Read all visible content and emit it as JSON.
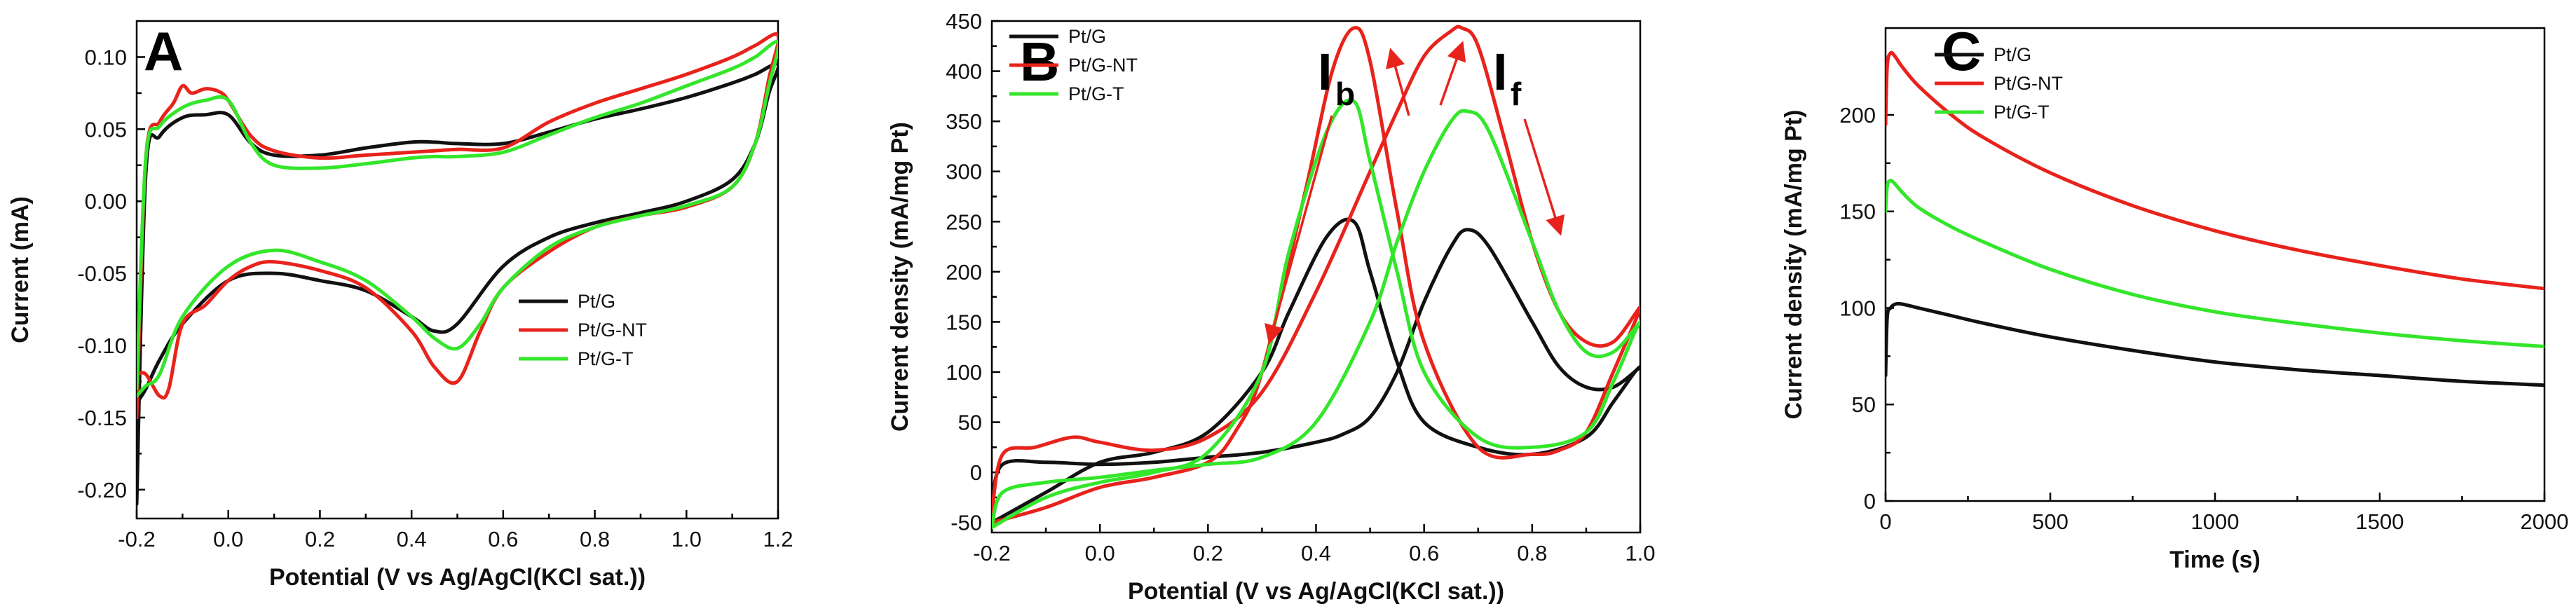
{
  "colors": {
    "Pt/G": "#111111",
    "Pt/G-NT": "#e8231c",
    "Pt/G-T": "#33e62a"
  },
  "chart_data": [
    {
      "type": "line",
      "panel": "A",
      "title": "",
      "xlabel": "Potential (V vs Ag/AgCl(KCl sat.))",
      "ylabel": "Current (mA)",
      "xlim": [
        -0.2,
        1.2
      ],
      "ylim": [
        -0.22,
        0.125
      ],
      "xticks": [
        "-0.2",
        "0.0",
        "0.2",
        "0.4",
        "0.6",
        "0.8",
        "1.0",
        "1.2"
      ],
      "yticks": [
        "-0.20",
        "-0.15",
        "-0.10",
        "-0.05",
        "0.00",
        "0.05",
        "0.10"
      ],
      "legend": [
        "Pt/G",
        "Pt/G-NT",
        "Pt/G-T"
      ],
      "legend_position": "lower-right",
      "series": [
        {
          "name": "Pt/G",
          "x": [
            -0.2,
            -0.18,
            -0.15,
            -0.1,
            -0.05,
            0.0,
            0.05,
            0.1,
            0.2,
            0.3,
            0.4,
            0.45,
            0.5,
            0.6,
            0.7,
            0.8,
            0.9,
            1.0,
            1.1,
            1.15,
            1.2,
            1.18,
            1.15,
            1.1,
            1.0,
            0.9,
            0.8,
            0.7,
            0.6,
            0.5,
            0.45,
            0.4,
            0.3,
            0.2,
            0.1,
            0.0,
            -0.1,
            -0.15,
            -0.18,
            -0.2
          ],
          "y": [
            -0.21,
            0.02,
            0.045,
            0.058,
            0.06,
            0.06,
            0.04,
            0.032,
            0.032,
            0.037,
            0.041,
            0.041,
            0.04,
            0.04,
            0.048,
            0.057,
            0.064,
            0.072,
            0.082,
            0.088,
            0.095,
            0.075,
            0.04,
            0.015,
            0.0,
            -0.008,
            -0.015,
            -0.025,
            -0.045,
            -0.085,
            -0.09,
            -0.08,
            -0.062,
            -0.055,
            -0.05,
            -0.055,
            -0.085,
            -0.11,
            -0.13,
            -0.14
          ]
        },
        {
          "name": "Pt/G-NT",
          "x": [
            -0.2,
            -0.18,
            -0.15,
            -0.12,
            -0.1,
            -0.08,
            -0.05,
            -0.02,
            0.0,
            0.05,
            0.1,
            0.2,
            0.3,
            0.4,
            0.45,
            0.5,
            0.6,
            0.7,
            0.8,
            0.9,
            1.0,
            1.1,
            1.15,
            1.2,
            1.18,
            1.15,
            1.1,
            1.0,
            0.9,
            0.8,
            0.7,
            0.6,
            0.55,
            0.5,
            0.45,
            0.4,
            0.3,
            0.2,
            0.1,
            0.05,
            0.0,
            -0.05,
            -0.1,
            -0.13,
            -0.15,
            -0.18,
            -0.2
          ],
          "y": [
            -0.15,
            0.03,
            0.055,
            0.068,
            0.08,
            0.075,
            0.078,
            0.076,
            0.07,
            0.045,
            0.035,
            0.03,
            0.032,
            0.034,
            0.035,
            0.036,
            0.037,
            0.055,
            0.068,
            0.078,
            0.088,
            0.1,
            0.108,
            0.115,
            0.085,
            0.04,
            0.01,
            -0.004,
            -0.01,
            -0.018,
            -0.035,
            -0.06,
            -0.09,
            -0.125,
            -0.115,
            -0.09,
            -0.06,
            -0.048,
            -0.042,
            -0.045,
            -0.055,
            -0.072,
            -0.085,
            -0.13,
            -0.135,
            -0.12,
            -0.12
          ]
        },
        {
          "name": "Pt/G-T",
          "x": [
            -0.2,
            -0.18,
            -0.15,
            -0.1,
            -0.05,
            0.0,
            0.05,
            0.1,
            0.2,
            0.3,
            0.4,
            0.45,
            0.5,
            0.6,
            0.7,
            0.8,
            0.9,
            1.0,
            1.1,
            1.15,
            1.2,
            1.18,
            1.15,
            1.1,
            1.0,
            0.9,
            0.8,
            0.7,
            0.6,
            0.55,
            0.5,
            0.45,
            0.4,
            0.3,
            0.2,
            0.1,
            0.0,
            -0.1,
            -0.15,
            -0.18,
            -0.2
          ],
          "y": [
            -0.13,
            0.03,
            0.052,
            0.065,
            0.07,
            0.07,
            0.04,
            0.025,
            0.023,
            0.026,
            0.03,
            0.031,
            0.031,
            0.034,
            0.046,
            0.058,
            0.068,
            0.08,
            0.092,
            0.1,
            0.11,
            0.08,
            0.04,
            0.01,
            -0.003,
            -0.01,
            -0.018,
            -0.032,
            -0.06,
            -0.085,
            -0.102,
            -0.095,
            -0.08,
            -0.055,
            -0.042,
            -0.034,
            -0.045,
            -0.08,
            -0.12,
            -0.128,
            -0.135
          ]
        }
      ]
    },
    {
      "type": "line",
      "panel": "B",
      "title": "",
      "xlabel": "Potential (V vs Ag/AgCl(KCl sat.))",
      "ylabel": "Current density (mA/mg Pt)",
      "xlim": [
        -0.2,
        1.0
      ],
      "ylim": [
        -60,
        450
      ],
      "xticks": [
        "-0.2",
        "0.0",
        "0.2",
        "0.4",
        "0.6",
        "0.8",
        "1.0"
      ],
      "yticks": [
        "-50",
        "0",
        "50",
        "100",
        "150",
        "200",
        "250",
        "300",
        "350",
        "400",
        "450"
      ],
      "legend": [
        "Pt/G",
        "Pt/G-NT",
        "Pt/G-T"
      ],
      "legend_position": "top-left",
      "annotations": {
        "backward": "I",
        "backward_sub": "b",
        "forward": "I",
        "forward_sub": "f"
      },
      "series": [
        {
          "name": "Pt/G",
          "x": [
            -0.2,
            -0.18,
            -0.1,
            0.0,
            0.1,
            0.2,
            0.3,
            0.4,
            0.45,
            0.5,
            0.55,
            0.6,
            0.65,
            0.68,
            0.72,
            0.8,
            0.85,
            0.9,
            0.95,
            1.0,
            0.99,
            0.95,
            0.9,
            0.8,
            0.7,
            0.6,
            0.55,
            0.5,
            0.47,
            0.42,
            0.35,
            0.3,
            0.2,
            0.1,
            0.0,
            -0.1,
            -0.2
          ],
          "y": [
            -30,
            8,
            10,
            8,
            10,
            15,
            20,
            30,
            38,
            55,
            100,
            170,
            225,
            242,
            225,
            150,
            105,
            85,
            85,
            105,
            100,
            70,
            35,
            18,
            25,
            50,
            110,
            200,
            250,
            235,
            160,
            100,
            40,
            20,
            10,
            -20,
            -50
          ]
        },
        {
          "name": "Pt/G-NT",
          "x": [
            -0.2,
            -0.18,
            -0.12,
            -0.05,
            0.0,
            0.1,
            0.2,
            0.3,
            0.4,
            0.5,
            0.55,
            0.6,
            0.65,
            0.67,
            0.7,
            0.75,
            0.8,
            0.85,
            0.9,
            0.95,
            1.0,
            0.99,
            0.95,
            0.9,
            0.85,
            0.8,
            0.7,
            0.6,
            0.55,
            0.5,
            0.47,
            0.43,
            0.38,
            0.3,
            0.25,
            0.2,
            0.1,
            0.0,
            -0.1,
            -0.2
          ],
          "y": [
            -40,
            18,
            25,
            35,
            30,
            22,
            35,
            80,
            180,
            300,
            360,
            415,
            440,
            443,
            425,
            330,
            230,
            160,
            130,
            130,
            165,
            150,
            100,
            40,
            22,
            18,
            25,
            130,
            260,
            410,
            443,
            400,
            280,
            100,
            40,
            10,
            -5,
            -15,
            -35,
            -50
          ]
        },
        {
          "name": "Pt/G-T",
          "x": [
            -0.2,
            -0.18,
            -0.1,
            0.0,
            0.1,
            0.2,
            0.3,
            0.4,
            0.5,
            0.55,
            0.6,
            0.65,
            0.68,
            0.72,
            0.8,
            0.85,
            0.9,
            0.95,
            1.0,
            0.99,
            0.95,
            0.9,
            0.8,
            0.7,
            0.6,
            0.55,
            0.5,
            0.47,
            0.42,
            0.35,
            0.3,
            0.2,
            0.1,
            0.0,
            -0.1,
            -0.2
          ],
          "y": [
            -55,
            -20,
            -10,
            -5,
            2,
            8,
            15,
            50,
            150,
            230,
            300,
            350,
            360,
            340,
            230,
            160,
            120,
            120,
            150,
            140,
            90,
            40,
            25,
            35,
            100,
            200,
            310,
            370,
            340,
            220,
            100,
            20,
            0,
            -10,
            -25,
            -55
          ]
        }
      ]
    },
    {
      "type": "line",
      "panel": "C",
      "title": "",
      "xlabel": "Time (s)",
      "ylabel": "Current density (mA/mg Pt)",
      "xlim": [
        0,
        2000
      ],
      "ylim": [
        0,
        245
      ],
      "xticks": [
        "0",
        "500",
        "1000",
        "1500",
        "2000"
      ],
      "yticks": [
        "0",
        "50",
        "100",
        "150",
        "200"
      ],
      "legend": [
        "Pt/G",
        "Pt/G-NT",
        "Pt/G-T"
      ],
      "legend_position": "top-left",
      "series": [
        {
          "name": "Pt/G",
          "x": [
            0,
            5,
            15,
            30,
            50,
            100,
            200,
            300,
            500,
            750,
            1000,
            1250,
            1500,
            1750,
            2000
          ],
          "y": [
            65,
            95,
            100,
            102,
            102,
            100,
            96,
            92,
            85,
            78,
            72,
            68,
            65,
            62,
            60
          ]
        },
        {
          "name": "Pt/G-NT",
          "x": [
            0,
            5,
            15,
            30,
            50,
            100,
            200,
            300,
            500,
            750,
            1000,
            1250,
            1500,
            1750,
            2000
          ],
          "y": [
            195,
            225,
            232,
            230,
            225,
            215,
            200,
            188,
            170,
            153,
            140,
            130,
            122,
            115,
            110
          ]
        },
        {
          "name": "Pt/G-T",
          "x": [
            0,
            5,
            15,
            30,
            50,
            100,
            200,
            300,
            500,
            750,
            1000,
            1250,
            1500,
            1750,
            2000
          ],
          "y": [
            150,
            163,
            166,
            164,
            160,
            152,
            142,
            134,
            120,
            107,
            98,
            92,
            87,
            83,
            80
          ]
        }
      ]
    }
  ]
}
